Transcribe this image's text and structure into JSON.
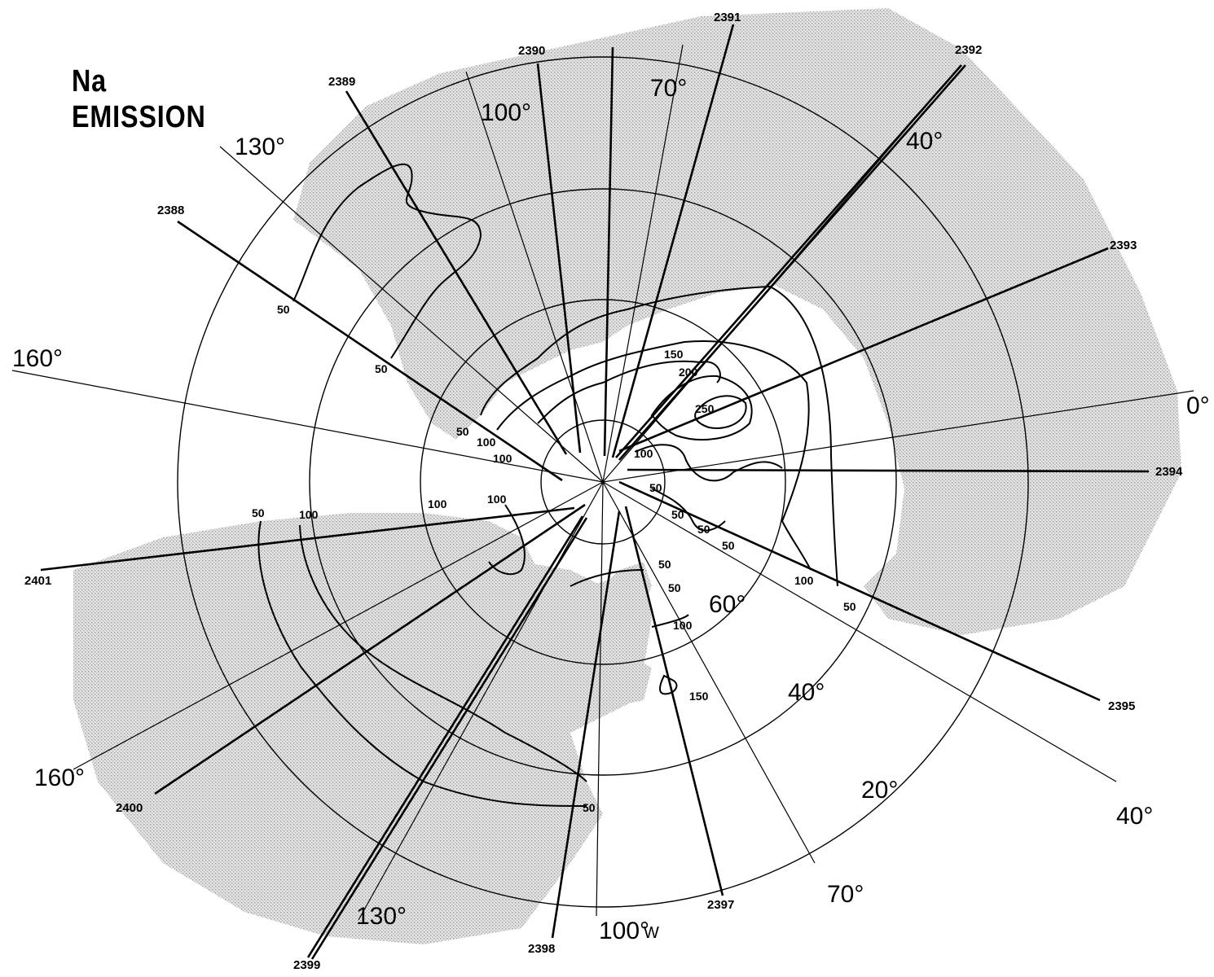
{
  "title": {
    "line1": "Na",
    "line2": "EMISSION"
  },
  "orbits": [
    "2388",
    "2389",
    "2390",
    "2391",
    "2392",
    "2393",
    "2394",
    "2395",
    "2397",
    "2398",
    "2399",
    "2400",
    "2401"
  ],
  "longitudes_outer": {
    "lon_0": "0°",
    "lon_40_upper": "40°",
    "lon_70_upper": "70°",
    "lon_100_upper": "100°",
    "lon_130_upper": "130°",
    "lon_160_upper": "160°",
    "lon_160_lower": "160°",
    "lon_130_lower": "130°",
    "lon_100w": "100°",
    "lon_100w_suffix": "W",
    "lon_70_lower": "70°",
    "lon_40_lower": "40°"
  },
  "latitude_labels": {
    "lat_60": "60°",
    "lat_40": "40°",
    "lat_20": "20°"
  },
  "contour_labels": {
    "c50_a": "50",
    "c50_b": "50",
    "c50_c": "50",
    "c100_a": "100",
    "c100_b": "100",
    "c150_a": "150",
    "c200": "200",
    "c250": "250",
    "c100_c": "100",
    "c50_d": "50",
    "c50_e": "50",
    "c50_f": "50",
    "c50_g": "50",
    "c100_d": "100",
    "c50_h": "50",
    "c50_i": "50",
    "c50_j": "50",
    "c100_e": "100",
    "c150_b": "150",
    "c100_f": "100",
    "c100_g": "100",
    "c100_h": "100",
    "c50_k": "50",
    "c100_i": "100",
    "c50_l": "50"
  },
  "colors": {
    "shading": "#c8c8c8",
    "ink": "#000000",
    "background": "#ffffff"
  }
}
